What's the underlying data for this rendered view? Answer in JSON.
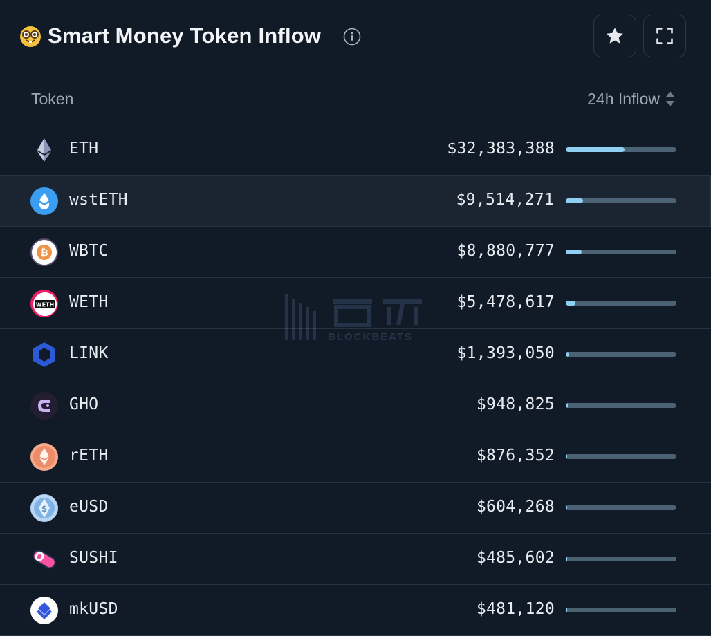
{
  "header": {
    "title": "Smart Money Token Inflow",
    "emoji_icon": "nerd-face-icon",
    "info_icon": "info-icon",
    "star_button_icon": "star-icon",
    "expand_button_icon": "expand-icon"
  },
  "columns": {
    "token": "Token",
    "inflow": "24h Inflow",
    "sort_icon": "sort-icon"
  },
  "colors": {
    "background": "#111a27",
    "row_divider": "#283342",
    "bar_track": "#4a6274",
    "bar_fill": "#8fd0f2",
    "hover_row": "#1b2431"
  },
  "watermark": {
    "brand": "BLOCKBEATS",
    "logo_icon": "blockbeats-logo-icon"
  },
  "rows": [
    {
      "symbol": "ETH",
      "amount": "$32,383,388",
      "share": 0.53,
      "icon": "eth-icon"
    },
    {
      "symbol": "wstETH",
      "amount": "$9,514,271",
      "share": 0.155,
      "icon": "wsteth-icon"
    },
    {
      "symbol": "WBTC",
      "amount": "$8,880,777",
      "share": 0.145,
      "icon": "wbtc-icon"
    },
    {
      "symbol": "WETH",
      "amount": "$5,478,617",
      "share": 0.09,
      "icon": "weth-icon"
    },
    {
      "symbol": "LINK",
      "amount": "$1,393,050",
      "share": 0.023,
      "icon": "link-icon"
    },
    {
      "symbol": "GHO",
      "amount": "$948,825",
      "share": 0.016,
      "icon": "gho-icon"
    },
    {
      "symbol": "rETH",
      "amount": "$876,352",
      "share": 0.014,
      "icon": "reth-icon"
    },
    {
      "symbol": "eUSD",
      "amount": "$604,268",
      "share": 0.01,
      "icon": "eusd-icon"
    },
    {
      "symbol": "SUSHI",
      "amount": "$485,602",
      "share": 0.008,
      "icon": "sushi-icon"
    },
    {
      "symbol": "mkUSD",
      "amount": "$481,120",
      "share": 0.008,
      "icon": "mkusd-icon"
    }
  ]
}
